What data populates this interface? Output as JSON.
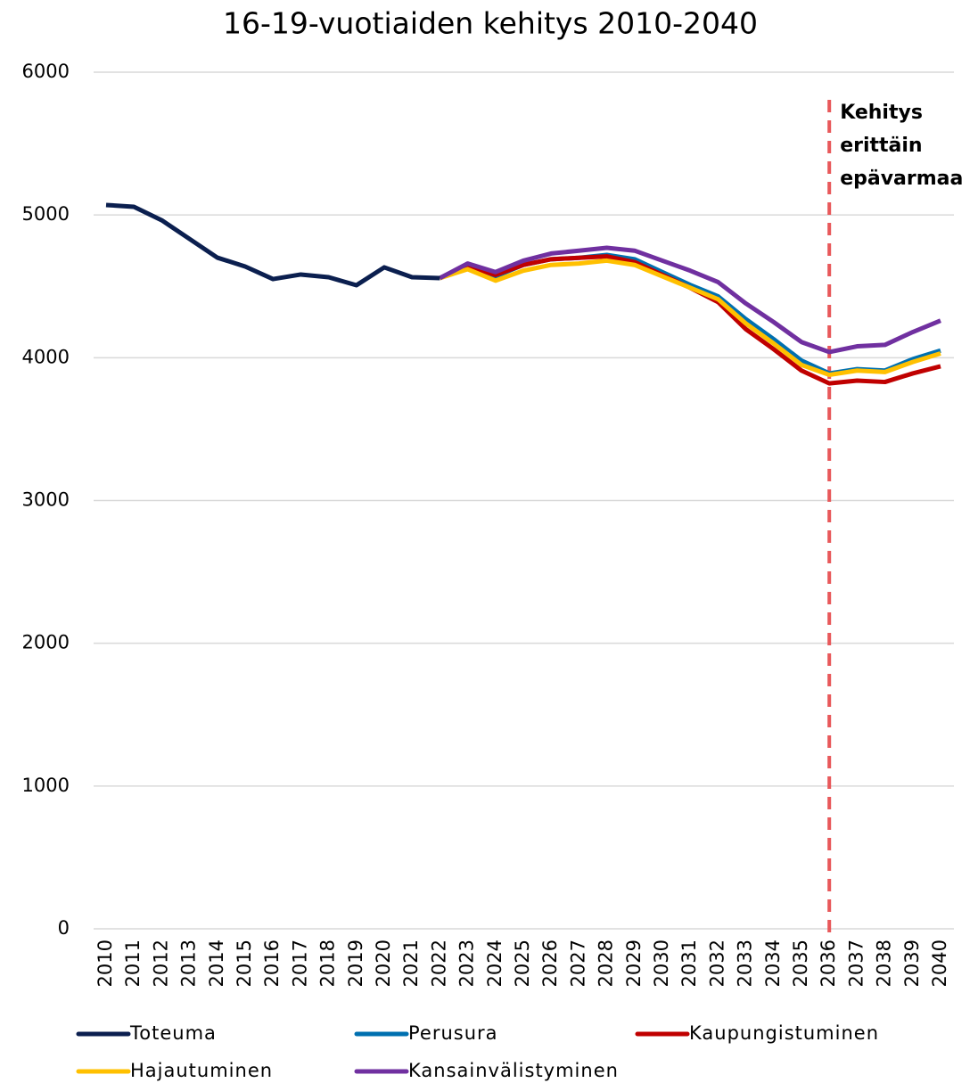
{
  "chart_data": {
    "type": "line",
    "title": "16-19-vuotiaiden kehitys 2010-2040",
    "x": [
      2010,
      2011,
      2012,
      2013,
      2014,
      2015,
      2016,
      2017,
      2018,
      2019,
      2020,
      2021,
      2022,
      2023,
      2024,
      2025,
      2026,
      2027,
      2028,
      2029,
      2030,
      2031,
      2032,
      2033,
      2034,
      2035,
      2036,
      2037,
      2038,
      2039,
      2040
    ],
    "ylim": [
      0,
      6000
    ],
    "yticks": [
      0,
      1000,
      2000,
      3000,
      4000,
      5000,
      6000
    ],
    "grid": true,
    "series": [
      {
        "name": "Toteuma",
        "color": "#0b1f4f",
        "values": [
          5070,
          5057,
          4963,
          4832,
          4701,
          4639,
          4551,
          4583,
          4564,
          4508,
          4633,
          4564,
          4558,
          null,
          null,
          null,
          null,
          null,
          null,
          null,
          null,
          null,
          null,
          null,
          null,
          null,
          null,
          null,
          null,
          null,
          null
        ]
      },
      {
        "name": "Perusura",
        "color": "#0070b0",
        "values": [
          null,
          null,
          null,
          null,
          null,
          null,
          null,
          null,
          null,
          null,
          null,
          null,
          4558,
          4640,
          4570,
          4650,
          4690,
          4700,
          4720,
          4690,
          4600,
          4510,
          4430,
          4270,
          4130,
          3980,
          3890,
          3920,
          3910,
          3990,
          4050
        ]
      },
      {
        "name": "Kaupungistuminen",
        "color": "#c00000",
        "values": [
          null,
          null,
          null,
          null,
          null,
          null,
          null,
          null,
          null,
          null,
          null,
          null,
          4558,
          4640,
          4580,
          4650,
          4690,
          4700,
          4710,
          4670,
          4580,
          4490,
          4390,
          4200,
          4060,
          3910,
          3820,
          3840,
          3830,
          3890,
          3940
        ]
      },
      {
        "name": "Hajautuminen",
        "color": "#ffc000",
        "values": [
          null,
          null,
          null,
          null,
          null,
          null,
          null,
          null,
          null,
          null,
          null,
          null,
          4558,
          4620,
          4540,
          4610,
          4650,
          4660,
          4680,
          4650,
          4570,
          4490,
          4410,
          4240,
          4100,
          3950,
          3880,
          3910,
          3900,
          3970,
          4030
        ]
      },
      {
        "name": "Kansainvälistyminen",
        "color": "#7030a0",
        "values": [
          null,
          null,
          null,
          null,
          null,
          null,
          null,
          null,
          null,
          null,
          null,
          null,
          4558,
          4660,
          4600,
          4680,
          4730,
          4750,
          4770,
          4750,
          4680,
          4610,
          4530,
          4380,
          4250,
          4110,
          4040,
          4080,
          4090,
          4180,
          4260
        ]
      }
    ],
    "annotation": {
      "x": 2036,
      "color": "#e8585a",
      "lines": [
        "Kehitys",
        "erittäin",
        "epävarmaa"
      ]
    }
  }
}
